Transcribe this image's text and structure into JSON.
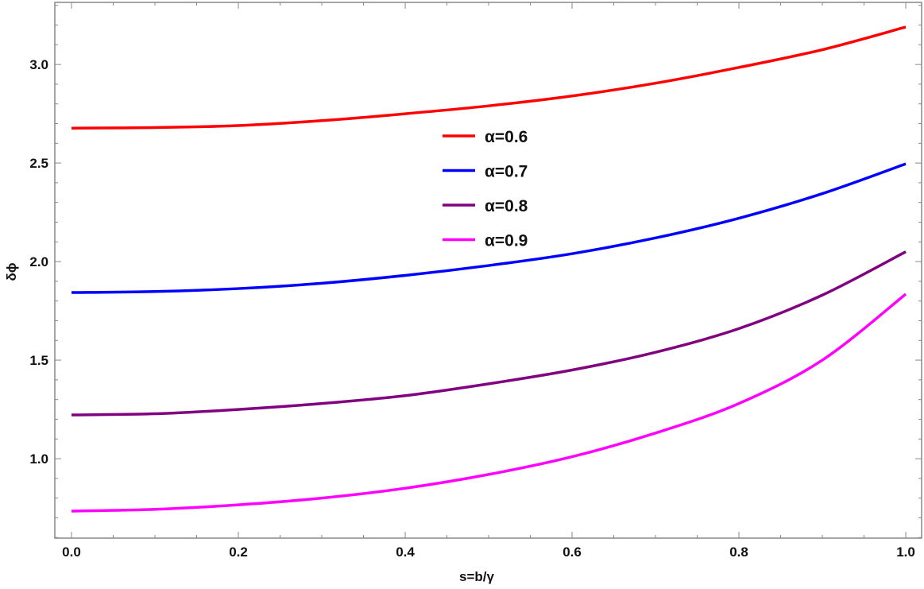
{
  "chart_data": {
    "type": "line",
    "xlabel": "s=b/γ",
    "ylabel": "δϕ",
    "xlim": [
      -0.02,
      1.019
    ],
    "ylim": [
      0.597,
      3.315
    ],
    "x_ticks": [
      "0.0",
      "0.2",
      "0.4",
      "0.6",
      "0.8",
      "1.0"
    ],
    "y_ticks": [
      "1.0",
      "1.5",
      "2.0",
      "2.5",
      "3.0"
    ],
    "grid": false,
    "legend_position": "center-top",
    "x": [
      0,
      0.1,
      0.2,
      0.3,
      0.4,
      0.5,
      0.6,
      0.7,
      0.8,
      0.9,
      1.0
    ],
    "series": [
      {
        "name": "α=0.6",
        "color": "#ff0000",
        "values": [
          2.677,
          2.68,
          2.69,
          2.715,
          2.75,
          2.79,
          2.84,
          2.905,
          2.985,
          3.075,
          3.19
        ]
      },
      {
        "name": "α=0.7",
        "color": "#0000ff",
        "values": [
          1.843,
          1.848,
          1.863,
          1.89,
          1.93,
          1.98,
          2.04,
          2.12,
          2.22,
          2.345,
          2.496
        ]
      },
      {
        "name": "α=0.8",
        "color": "#800080",
        "values": [
          1.222,
          1.228,
          1.25,
          1.28,
          1.32,
          1.38,
          1.45,
          1.54,
          1.66,
          1.83,
          2.05
        ]
      },
      {
        "name": "α=0.9",
        "color": "#ff00ff",
        "values": [
          0.734,
          0.743,
          0.766,
          0.8,
          0.85,
          0.92,
          1.01,
          1.13,
          1.28,
          1.5,
          1.835
        ]
      }
    ]
  }
}
